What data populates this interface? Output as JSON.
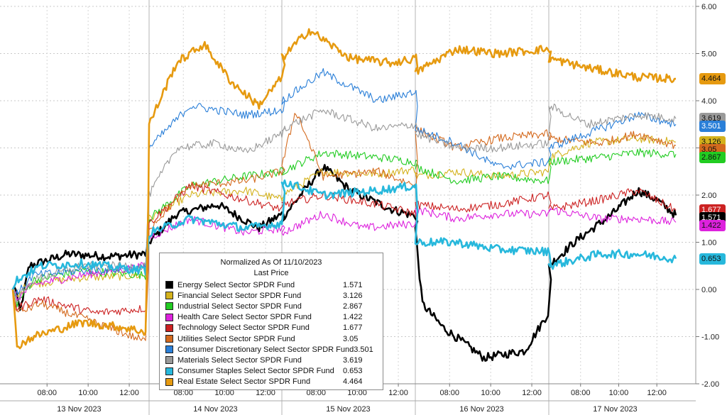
{
  "chart_data": {
    "type": "line",
    "title": "",
    "legend_title": "Normalized As Of 11/10/2023",
    "legend_subtitle": "Last Price",
    "legend_placement": "bottom-center",
    "xlabel": "",
    "ylabel": "",
    "ylim": [
      -2.0,
      6.0
    ],
    "y_ticks": [
      "6.00",
      "5.00",
      "4.00",
      "3.00",
      "2.00",
      "1.00",
      "0.00",
      "-1.00",
      "-2.00"
    ],
    "x_ticks": [
      "08:00",
      "10:00",
      "12:00",
      "08:00",
      "10:00",
      "12:00",
      "08:00",
      "10:00",
      "12:00",
      "08:00",
      "10:00",
      "12:00",
      "08:00",
      "10:00",
      "12:00"
    ],
    "days": [
      "13 Nov 2023",
      "14 Nov 2023",
      "15 Nov 2023",
      "16 Nov 2023",
      "17 Nov 2023"
    ],
    "grid": true,
    "series": [
      {
        "name": "Energy Select Sector SPDR Fund",
        "last": "1.571",
        "color": "#000000",
        "tag_text_color": "#ffffff",
        "keys": [
          [
            0,
            0
          ],
          [
            0.02,
            0.05
          ],
          [
            0.05,
            -0.5
          ],
          [
            0.12,
            0.5
          ],
          [
            0.4,
            0.75
          ],
          [
            0.7,
            0.7
          ],
          [
            0.97,
            0.75
          ],
          [
            1.0,
            1.0
          ],
          [
            1.2,
            1.6
          ],
          [
            1.5,
            1.8
          ],
          [
            1.8,
            1.3
          ],
          [
            1.97,
            1.6
          ],
          [
            2.0,
            1.5
          ],
          [
            2.3,
            2.6
          ],
          [
            2.5,
            2.1
          ],
          [
            2.8,
            1.7
          ],
          [
            2.98,
            1.55
          ],
          [
            3.0,
            1.3
          ],
          [
            3.05,
            -0.3
          ],
          [
            3.2,
            -0.8
          ],
          [
            3.5,
            -1.45
          ],
          [
            3.8,
            -1.3
          ],
          [
            3.97,
            -0.5
          ],
          [
            4.0,
            0.5
          ],
          [
            4.2,
            1.0
          ],
          [
            4.5,
            1.6
          ],
          [
            4.7,
            2.1
          ],
          [
            4.85,
            1.9
          ],
          [
            5.0,
            1.571
          ]
        ]
      },
      {
        "name": "Financial Select Sector SPDR Fund",
        "last": "3.126",
        "color": "#d4b21c",
        "tag_text_color": "#111111",
        "keys": [
          [
            0,
            0
          ],
          [
            0.03,
            -0.2
          ],
          [
            0.1,
            0.1
          ],
          [
            0.5,
            0.25
          ],
          [
            0.97,
            0.3
          ],
          [
            1.0,
            1.5
          ],
          [
            1.3,
            2.0
          ],
          [
            1.7,
            2.1
          ],
          [
            1.97,
            1.9
          ],
          [
            2.0,
            2.0
          ],
          [
            2.3,
            2.5
          ],
          [
            2.7,
            2.45
          ],
          [
            2.98,
            2.55
          ],
          [
            3.0,
            2.4
          ],
          [
            3.3,
            2.5
          ],
          [
            3.6,
            2.4
          ],
          [
            3.97,
            2.5
          ],
          [
            4.0,
            2.8
          ],
          [
            4.3,
            3.1
          ],
          [
            4.7,
            3.2
          ],
          [
            5.0,
            3.126
          ]
        ]
      },
      {
        "name": "Industrial Select Sector SPDR Fund",
        "last": "2.867",
        "color": "#22cc22",
        "tag_text_color": "#111111",
        "keys": [
          [
            0,
            0
          ],
          [
            0.03,
            -0.3
          ],
          [
            0.15,
            0.2
          ],
          [
            0.5,
            0.4
          ],
          [
            0.97,
            0.3
          ],
          [
            1.0,
            1.5
          ],
          [
            1.3,
            2.2
          ],
          [
            1.7,
            2.4
          ],
          [
            1.97,
            2.5
          ],
          [
            2.0,
            2.5
          ],
          [
            2.3,
            2.9
          ],
          [
            2.7,
            2.8
          ],
          [
            2.98,
            2.7
          ],
          [
            3.0,
            2.6
          ],
          [
            3.3,
            2.3
          ],
          [
            3.6,
            2.4
          ],
          [
            3.97,
            2.3
          ],
          [
            4.0,
            2.7
          ],
          [
            4.4,
            2.8
          ],
          [
            4.7,
            2.9
          ],
          [
            5.0,
            2.867
          ]
        ]
      },
      {
        "name": "Health Care Select Sector SPDR Fund",
        "last": "1.422",
        "color": "#dd22dd",
        "tag_text_color": "#111111",
        "keys": [
          [
            0,
            0
          ],
          [
            0.03,
            -0.2
          ],
          [
            0.15,
            0.1
          ],
          [
            0.5,
            0.3
          ],
          [
            0.97,
            0.5
          ],
          [
            1.0,
            1.1
          ],
          [
            1.3,
            1.5
          ],
          [
            1.7,
            1.2
          ],
          [
            1.97,
            1.3
          ],
          [
            2.0,
            1.2
          ],
          [
            2.3,
            1.6
          ],
          [
            2.6,
            1.3
          ],
          [
            2.98,
            1.4
          ],
          [
            3.0,
            1.7
          ],
          [
            3.3,
            1.5
          ],
          [
            3.6,
            1.6
          ],
          [
            3.97,
            1.6
          ],
          [
            4.0,
            1.7
          ],
          [
            4.4,
            1.5
          ],
          [
            4.7,
            1.5
          ],
          [
            5.0,
            1.422
          ]
        ]
      },
      {
        "name": "Technology Select Sector SPDR Fund",
        "last": "1.677",
        "color": "#cc2222",
        "tag_text_color": "#ffffff",
        "keys": [
          [
            0,
            0
          ],
          [
            0.03,
            -0.4
          ],
          [
            0.2,
            -0.2
          ],
          [
            0.6,
            -0.5
          ],
          [
            0.97,
            -0.4
          ],
          [
            1.0,
            1.4
          ],
          [
            1.3,
            2.2
          ],
          [
            1.7,
            1.9
          ],
          [
            1.97,
            1.7
          ],
          [
            2.0,
            1.8
          ],
          [
            2.3,
            2.0
          ],
          [
            2.7,
            1.8
          ],
          [
            2.98,
            1.6
          ],
          [
            3.0,
            1.8
          ],
          [
            3.3,
            1.7
          ],
          [
            3.6,
            1.8
          ],
          [
            3.97,
            2.0
          ],
          [
            4.0,
            1.7
          ],
          [
            4.4,
            1.9
          ],
          [
            4.7,
            2.1
          ],
          [
            5.0,
            1.677
          ]
        ]
      },
      {
        "name": "Utilities Select Sector SPDR Fund",
        "last": "3.05",
        "color": "#d46a1e",
        "tag_text_color": "#111111",
        "keys": [
          [
            0,
            0
          ],
          [
            0.03,
            -0.5
          ],
          [
            0.2,
            -0.3
          ],
          [
            0.5,
            -0.6
          ],
          [
            0.97,
            -1.1
          ],
          [
            1.0,
            1.3
          ],
          [
            1.3,
            2.2
          ],
          [
            1.7,
            2.3
          ],
          [
            1.97,
            2.5
          ],
          [
            2.0,
            2.6
          ],
          [
            2.1,
            3.8
          ],
          [
            2.3,
            2.4
          ],
          [
            2.7,
            2.5
          ],
          [
            2.98,
            2.2
          ],
          [
            3.0,
            3.4
          ],
          [
            3.3,
            3.0
          ],
          [
            3.6,
            3.2
          ],
          [
            3.97,
            3.3
          ],
          [
            4.0,
            3.2
          ],
          [
            4.4,
            3.1
          ],
          [
            4.7,
            3.3
          ],
          [
            5.0,
            3.05
          ]
        ]
      },
      {
        "name": "Consumer Discretionary Select Sector SPDR Fund",
        "last": "3.501",
        "color": "#2a7fd8",
        "tag_text_color": "#ffffff",
        "keys": [
          [
            0,
            0
          ],
          [
            0.03,
            -0.1
          ],
          [
            0.15,
            0.3
          ],
          [
            0.5,
            0.4
          ],
          [
            0.97,
            0.45
          ],
          [
            1.0,
            3.0
          ],
          [
            1.3,
            3.9
          ],
          [
            1.7,
            3.7
          ],
          [
            1.97,
            3.8
          ],
          [
            2.0,
            4.0
          ],
          [
            2.3,
            4.6
          ],
          [
            2.7,
            4.0
          ],
          [
            2.98,
            4.2
          ],
          [
            3.0,
            3.4
          ],
          [
            3.3,
            3.1
          ],
          [
            3.6,
            2.6
          ],
          [
            3.97,
            2.7
          ],
          [
            4.0,
            3.0
          ],
          [
            4.4,
            3.4
          ],
          [
            4.7,
            3.7
          ],
          [
            5.0,
            3.501
          ]
        ]
      },
      {
        "name": "Materials Select Sector SPDR Fund",
        "last": "3.619",
        "color": "#9a9a9a",
        "tag_text_color": "#111111",
        "keys": [
          [
            0,
            0
          ],
          [
            0.03,
            -0.2
          ],
          [
            0.15,
            0.2
          ],
          [
            0.5,
            0.5
          ],
          [
            0.97,
            0.5
          ],
          [
            1.0,
            2.0
          ],
          [
            1.2,
            3.0
          ],
          [
            1.5,
            3.1
          ],
          [
            1.7,
            2.9
          ],
          [
            1.97,
            3.3
          ],
          [
            2.0,
            3.4
          ],
          [
            2.3,
            3.8
          ],
          [
            2.7,
            3.4
          ],
          [
            2.98,
            3.5
          ],
          [
            3.0,
            3.3
          ],
          [
            3.3,
            3.0
          ],
          [
            3.6,
            3.0
          ],
          [
            3.97,
            3.1
          ],
          [
            4.0,
            3.9
          ],
          [
            4.3,
            3.5
          ],
          [
            4.7,
            3.7
          ],
          [
            5.0,
            3.619
          ]
        ]
      },
      {
        "name": "Consumer Staples Select Sector SPDR Fund",
        "last": "0.653",
        "color": "#27b8dc",
        "tag_text_color": "#111111",
        "keys": [
          [
            0,
            0
          ],
          [
            0.03,
            0.2
          ],
          [
            0.2,
            0.5
          ],
          [
            0.5,
            0.55
          ],
          [
            0.97,
            0.4
          ],
          [
            1.0,
            1.2
          ],
          [
            1.3,
            1.5
          ],
          [
            1.7,
            1.3
          ],
          [
            1.97,
            1.4
          ],
          [
            2.0,
            2.3
          ],
          [
            2.3,
            2.0
          ],
          [
            2.7,
            2.1
          ],
          [
            2.98,
            2.2
          ],
          [
            3.0,
            1.0
          ],
          [
            3.3,
            1.0
          ],
          [
            3.6,
            0.85
          ],
          [
            3.97,
            0.8
          ],
          [
            4.0,
            0.5
          ],
          [
            4.4,
            0.75
          ],
          [
            4.7,
            0.75
          ],
          [
            5.0,
            0.653
          ]
        ]
      },
      {
        "name": "Real Estate Select Sector SPDR Fund",
        "last": "4.464",
        "color": "#e69a10",
        "tag_text_color": "#111111",
        "keys": [
          [
            0,
            0
          ],
          [
            0.03,
            -1.2
          ],
          [
            0.15,
            -1.0
          ],
          [
            0.5,
            -0.7
          ],
          [
            0.8,
            -0.8
          ],
          [
            0.97,
            -0.9
          ],
          [
            1.0,
            3.5
          ],
          [
            1.2,
            4.8
          ],
          [
            1.4,
            5.2
          ],
          [
            1.6,
            4.4
          ],
          [
            1.8,
            3.9
          ],
          [
            1.97,
            4.5
          ],
          [
            2.0,
            4.9
          ],
          [
            2.2,
            5.5
          ],
          [
            2.5,
            4.9
          ],
          [
            2.8,
            4.8
          ],
          [
            2.98,
            4.9
          ],
          [
            3.0,
            4.6
          ],
          [
            3.3,
            5.1
          ],
          [
            3.6,
            5.0
          ],
          [
            3.97,
            5.1
          ],
          [
            4.0,
            4.9
          ],
          [
            4.3,
            4.7
          ],
          [
            4.7,
            4.5
          ],
          [
            5.0,
            4.464
          ]
        ]
      }
    ]
  }
}
